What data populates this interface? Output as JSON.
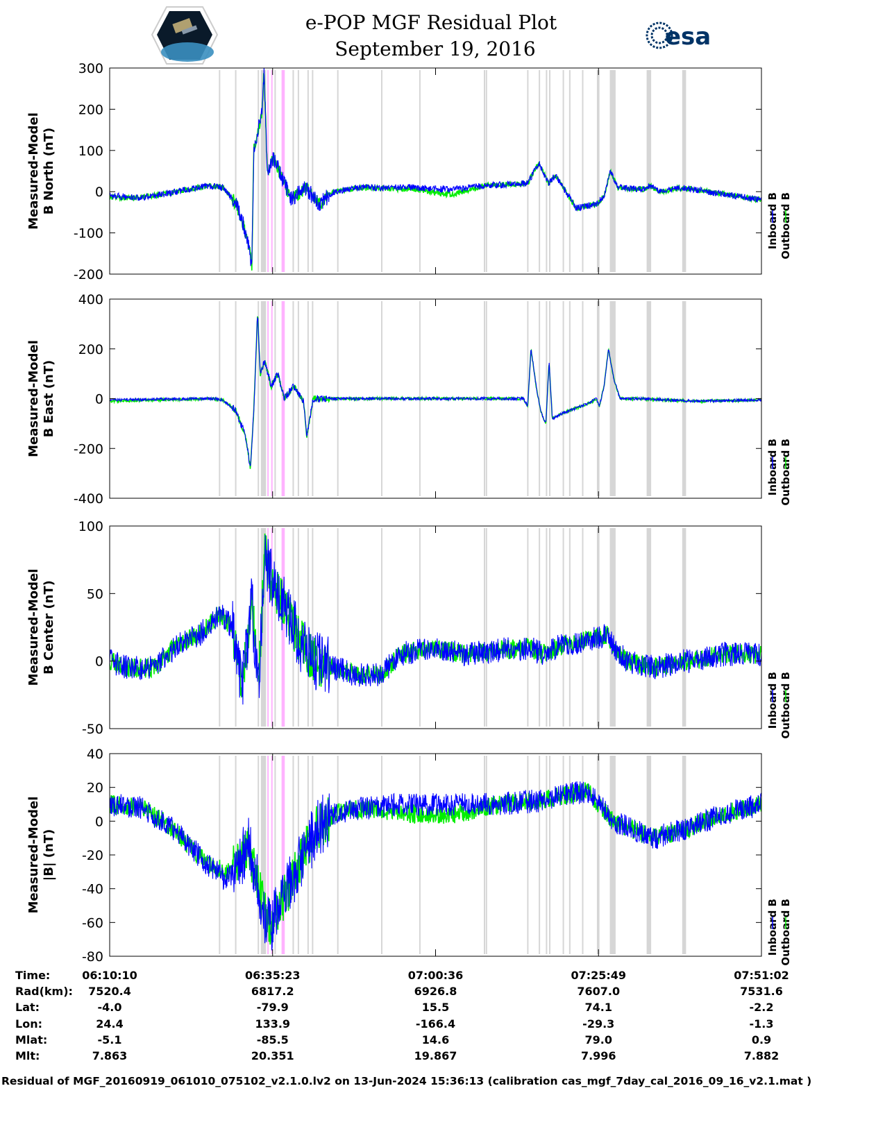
{
  "header": {
    "title": "e-POP MGF Residual Plot",
    "date": "September 19, 2016",
    "left_logo": "CASSIOPE",
    "right_logo": "esa"
  },
  "colors": {
    "inboard": "#0000ff",
    "outboard": "#00ee00",
    "gray_band": "#d6d6d6",
    "pink_band": "#ffb3ff"
  },
  "chart_data": [
    {
      "type": "line",
      "title": "B North",
      "ylabel": [
        "Measured-Model",
        "B North (nT)"
      ],
      "ylim": [
        -200,
        300
      ],
      "yticks": [
        300,
        200,
        100,
        0,
        -100,
        -200
      ],
      "legend": [
        "Inboard B",
        "Outboard B"
      ],
      "legend_placement": "right",
      "x_unit": "minutes since 06:10:10",
      "x": [
        0,
        4.5,
        8.8,
        15.3,
        17.5,
        19.6,
        20.7,
        21.7,
        22.0,
        22.3,
        23.0,
        23.6,
        23.9,
        24.4,
        25.4,
        26.5,
        28.1,
        30.3,
        32.4,
        34.6,
        38.9,
        47.5,
        52.9,
        58.2,
        64.7,
        66.4,
        67.9,
        69.0,
        72.2,
        75.4,
        76.5,
        77.5,
        78.6,
        82.9,
        83.5,
        85.1,
        88.8,
        90.4,
        100.9
      ],
      "series": [
        {
          "name": "Inboard B",
          "values": [
            -10,
            -15,
            -5,
            15,
            10,
            -30,
            -80,
            -150,
            -180,
            100,
            150,
            200,
            290,
            50,
            80,
            40,
            -20,
            10,
            -30,
            0,
            10,
            10,
            5,
            15,
            20,
            70,
            20,
            40,
            -40,
            -30,
            -10,
            50,
            10,
            5,
            15,
            0,
            10,
            5,
            -20
          ]
        },
        {
          "name": "Outboard B",
          "values": [
            -14,
            -15,
            -5,
            15,
            10,
            -30,
            -80,
            -150,
            -180,
            100,
            150,
            200,
            290,
            50,
            80,
            40,
            -20,
            10,
            -30,
            0,
            10,
            5,
            -8,
            15,
            20,
            70,
            20,
            40,
            -40,
            -30,
            -10,
            50,
            10,
            5,
            15,
            0,
            10,
            5,
            -20
          ]
        }
      ]
    },
    {
      "type": "line",
      "title": "B East",
      "ylabel": [
        "Measured-Model",
        "B East (nT)"
      ],
      "ylim": [
        -400,
        400
      ],
      "yticks": [
        400,
        200,
        0,
        -200,
        -400
      ],
      "legend": [
        "Inboard B",
        "Outboard B"
      ],
      "legend_placement": "right",
      "x_unit": "minutes since 06:10:10",
      "x": [
        0,
        16,
        17.5,
        19.6,
        21,
        21.8,
        22.3,
        22.9,
        23.3,
        24,
        25,
        26,
        27,
        28.5,
        30,
        30.5,
        31.5,
        35,
        64,
        64.7,
        65.2,
        66,
        66.7,
        67.5,
        68,
        68.5,
        70,
        74,
        75.3,
        75.8,
        76.5,
        77.2,
        78,
        79,
        82,
        90,
        100.9
      ],
      "series": [
        {
          "name": "Inboard B",
          "values": [
            -5,
            0,
            -5,
            -50,
            -150,
            -280,
            -50,
            350,
            100,
            150,
            50,
            100,
            0,
            50,
            -10,
            -150,
            0,
            0,
            0,
            -30,
            200,
            50,
            -50,
            -100,
            150,
            -80,
            -60,
            -20,
            0,
            -30,
            50,
            200,
            80,
            0,
            0,
            -10,
            -5
          ]
        },
        {
          "name": "Outboard B",
          "values": [
            -10,
            0,
            -5,
            -50,
            -150,
            -280,
            -50,
            350,
            100,
            150,
            50,
            100,
            0,
            50,
            -10,
            -150,
            0,
            0,
            0,
            -30,
            200,
            50,
            -50,
            -100,
            150,
            -80,
            -60,
            -20,
            0,
            -30,
            50,
            200,
            80,
            0,
            0,
            -10,
            -5
          ]
        }
      ]
    },
    {
      "type": "line",
      "title": "B Center",
      "ylabel": [
        "Measured-Model",
        "B Center (nT)"
      ],
      "ylim": [
        -50,
        100
      ],
      "yticks": [
        100,
        50,
        0,
        -50
      ],
      "legend": [
        "Inboard B",
        "Outboard B"
      ],
      "legend_placement": "right",
      "x_unit": "minutes since 06:10:10",
      "x": [
        0,
        3,
        7,
        10,
        14,
        17,
        19,
        20.5,
        22,
        23,
        24,
        25,
        27,
        30,
        32,
        38,
        42,
        45,
        50,
        55,
        60,
        65,
        67,
        70,
        74,
        77,
        78,
        80,
        85,
        88,
        90,
        95,
        100.9
      ],
      "series": [
        {
          "name": "Inboard B",
          "values": [
            0,
            -5,
            -5,
            10,
            20,
            35,
            25,
            -20,
            45,
            -20,
            80,
            60,
            40,
            10,
            0,
            -10,
            -10,
            5,
            10,
            5,
            8,
            10,
            5,
            12,
            15,
            20,
            10,
            0,
            -5,
            0,
            0,
            5,
            5
          ]
        },
        {
          "name": "Outboard B",
          "values": [
            0,
            -5,
            -5,
            10,
            20,
            35,
            25,
            -20,
            45,
            -20,
            80,
            60,
            40,
            10,
            0,
            -10,
            -10,
            5,
            10,
            5,
            8,
            10,
            5,
            12,
            15,
            20,
            10,
            0,
            -5,
            0,
            0,
            5,
            5
          ]
        }
      ]
    },
    {
      "type": "line",
      "title": "|B|",
      "ylabel": [
        "Measured-Model",
        "|B| (nT)"
      ],
      "ylim": [
        -80,
        40
      ],
      "yticks": [
        40,
        20,
        0,
        -20,
        -40,
        -60,
        -80
      ],
      "legend": [
        "Inboard B",
        "Outboard B"
      ],
      "legend_placement": "right",
      "x_unit": "minutes since 06:10:10",
      "x": [
        0,
        5,
        10,
        15,
        18,
        20,
        21.5,
        22.5,
        24,
        25,
        27,
        30,
        32,
        35,
        40,
        45,
        50,
        55,
        60,
        66,
        70,
        74,
        76,
        78,
        81,
        84,
        86,
        89,
        92,
        96,
        100.9
      ],
      "series": [
        {
          "name": "Inboard B",
          "values": [
            10,
            8,
            -5,
            -25,
            -35,
            -25,
            -15,
            -30,
            -55,
            -60,
            -45,
            -20,
            -5,
            5,
            8,
            10,
            10,
            10,
            10,
            12,
            15,
            18,
            10,
            0,
            -5,
            -10,
            -8,
            -5,
            0,
            5,
            10
          ]
        },
        {
          "name": "Outboard B",
          "values": [
            10,
            8,
            -5,
            -25,
            -30,
            -25,
            -15,
            -30,
            -55,
            -60,
            -45,
            -20,
            -5,
            5,
            8,
            5,
            3,
            5,
            10,
            12,
            15,
            18,
            8,
            0,
            -5,
            -10,
            -8,
            -5,
            0,
            5,
            10
          ]
        }
      ]
    }
  ],
  "event_bands_minutes": {
    "gray": [
      [
        16.9,
        17.1
      ],
      [
        19.4,
        19.6
      ],
      [
        22.9,
        23.1
      ],
      [
        23.4,
        24.2
      ],
      [
        25.5,
        25.7
      ],
      [
        28.3,
        28.5
      ],
      [
        29.1,
        29.3
      ],
      [
        30.6,
        30.8
      ],
      [
        31.3,
        31.4
      ],
      [
        35.2,
        35.4
      ],
      [
        42,
        42.2
      ],
      [
        47.9,
        48.1
      ],
      [
        57.9,
        58.1
      ],
      [
        58.2,
        58.4
      ],
      [
        64.6,
        64.8
      ],
      [
        66.4,
        66.5
      ],
      [
        67.5,
        67.7
      ],
      [
        68,
        68.1
      ],
      [
        70.1,
        70.3
      ],
      [
        71.1,
        71.2
      ],
      [
        73.1,
        73.3
      ],
      [
        75.4,
        75.8
      ],
      [
        77.4,
        78.3
      ],
      [
        83.1,
        83.8
      ],
      [
        88.6,
        89.2
      ]
    ],
    "pink": [
      [
        24.4,
        24.6
      ],
      [
        25.0,
        25.2
      ],
      [
        26.6,
        27.1
      ]
    ]
  },
  "time_axis": {
    "ticks": [
      "06:10:10",
      "06:35:23",
      "07:00:36",
      "07:25:49",
      "07:51:02"
    ],
    "tick_minutes": [
      0,
      25.217,
      50.433,
      75.65,
      100.867
    ]
  },
  "orbit_table": {
    "rows": [
      {
        "label": "Time:",
        "values": [
          "06:10:10",
          "06:35:23",
          "07:00:36",
          "07:25:49",
          "07:51:02"
        ]
      },
      {
        "label": "Rad(km):",
        "values": [
          "7520.4",
          "6817.2",
          "6926.8",
          "7607.0",
          "7531.6"
        ]
      },
      {
        "label": "Lat:",
        "values": [
          "-4.0",
          "-79.9",
          "15.5",
          "74.1",
          "-2.2"
        ]
      },
      {
        "label": "Lon:",
        "values": [
          "24.4",
          "133.9",
          "-166.4",
          "-29.3",
          "-1.3"
        ]
      },
      {
        "label": "Mlat:",
        "values": [
          "-5.1",
          "-85.5",
          "14.6",
          "79.0",
          "0.9"
        ]
      },
      {
        "label": "Mlt:",
        "values": [
          "7.863",
          "20.351",
          "19.867",
          "7.996",
          "7.882"
        ]
      }
    ]
  },
  "footer": "Residual of MGF_20160919_061010_075102_v2.1.0.lv2 on 13-Jun-2024 15:36:13 (calibration cas_mgf_7day_cal_2016_09_16_v2.1.mat )"
}
